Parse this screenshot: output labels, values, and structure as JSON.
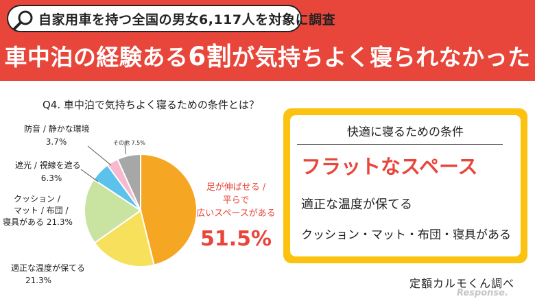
{
  "header": {
    "survey_label": "自家用車を持つ全国の男女6,117人を対象に調査",
    "headline_part1": "車中泊の経験ある",
    "headline_part2": "6割",
    "headline_part3": "が気持ちよく寝られなかった"
  },
  "question": "Q4. 車中泊で気持ちよく寝るための条件とは？",
  "chart_data": {
    "type": "pie",
    "title": "Q4. 車中泊で気持ちよく寝るための条件とは？",
    "slices": [
      {
        "label": "足が伸ばせる / 平らで 広いスペースがある",
        "value": 51.5,
        "display": "51.5%",
        "color": "#f5a623"
      },
      {
        "label": "適正な温度が保てる",
        "value": 21.3,
        "display": "21.3%",
        "color": "#f7e05c"
      },
      {
        "label": "クッション / マット / 布団 / 寝具がある",
        "value": 21.3,
        "display": "21.3%",
        "color": "#c9e3a0"
      },
      {
        "label": "遮光 / 視線を遮る",
        "value": 6.3,
        "display": "6.3%",
        "color": "#5bc2eb"
      },
      {
        "label": "防音 / 静かな環境",
        "value": 3.7,
        "display": "3.7%",
        "color": "#f6b9cf"
      },
      {
        "label": "その他",
        "value": 7.5,
        "display": "7.5%",
        "color": "#a7a7a7"
      }
    ],
    "labels": {
      "main_line1": "足が伸ばせる /",
      "main_line2": "平らで",
      "main_line3": "広いスペースがある",
      "main_value": "51.5%",
      "temp_line1": "適正な温度が保てる",
      "temp_value": "21.3%",
      "cushion_line1": "クッション /",
      "cushion_line2": "マット / 布団 /",
      "cushion_line3": "寝具がある 21.3%",
      "shade_line1": "遮光 / 視線を遮る",
      "shade_value": "6.3%",
      "sound_line1": "防音 / 静かな環境",
      "sound_value": "3.7%",
      "other": "その他 7.5%"
    }
  },
  "callout": {
    "title": "快適に寝るための条件",
    "condition_1": "フラットなスペース",
    "condition_2": "適正な温度が保てる",
    "condition_3": "クッション・マット・布団・寝具がある"
  },
  "credit": "定額カルモくん調べ",
  "watermark": "Response.",
  "colors": {
    "header_red": "#e8463a",
    "accent_yellow": "#fbc30f",
    "highlight_red": "#e8463a"
  }
}
